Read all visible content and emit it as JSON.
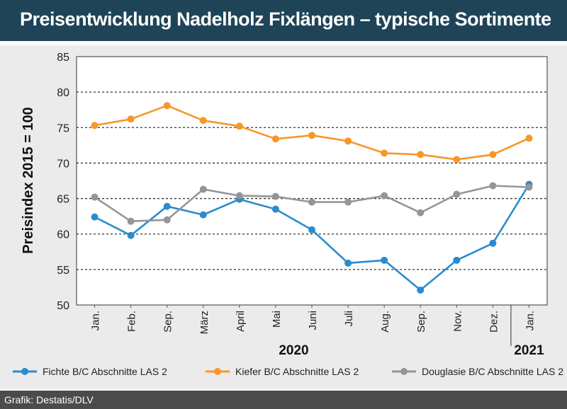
{
  "header": {
    "title": "Preisentwicklung Nadelholz Fixlängen – typische Sortimente"
  },
  "footer": {
    "source": "Grafik: Destatis/DLV"
  },
  "chart_data": {
    "type": "line",
    "title": "Preisentwicklung Nadelholz Fixlängen – typische Sortimente",
    "ylabel": "Preisindex 2015 = 100",
    "xlabel": "",
    "ylim": [
      50,
      85
    ],
    "yticks": [
      50,
      55,
      60,
      65,
      70,
      75,
      80,
      85
    ],
    "grid": "horizontal dashed",
    "legend": "bottom",
    "categories": [
      "Jan.",
      "Feb.",
      "Sep.",
      "März",
      "April",
      "Mai",
      "Juni",
      "Juli",
      "Aug.",
      "Sep.",
      "Nov.",
      "Dez.",
      "Jan."
    ],
    "year_groups": [
      {
        "label": "2020",
        "from": 0,
        "to": 11
      },
      {
        "label": "2021",
        "from": 12,
        "to": 12
      }
    ],
    "series": [
      {
        "name": "Fichte B/C Abschnitte LAS 2",
        "color": "#2a8ccc",
        "values": [
          62.4,
          59.8,
          63.9,
          62.7,
          64.9,
          63.5,
          60.6,
          55.9,
          56.3,
          52.1,
          56.3,
          58.7,
          67.0
        ]
      },
      {
        "name": "Kiefer B/C Abschnitte LAS 2",
        "color": "#f7962a",
        "values": [
          75.3,
          76.2,
          78.1,
          76.0,
          75.2,
          73.4,
          73.9,
          73.1,
          71.4,
          71.2,
          70.5,
          71.2,
          73.5
        ]
      },
      {
        "name": "Douglasie B/C Abschnitte LAS 2",
        "color": "#959595",
        "values": [
          65.2,
          61.8,
          62.0,
          66.3,
          65.4,
          65.3,
          64.5,
          64.5,
          65.4,
          63.0,
          65.6,
          66.8,
          66.6
        ]
      }
    ]
  }
}
